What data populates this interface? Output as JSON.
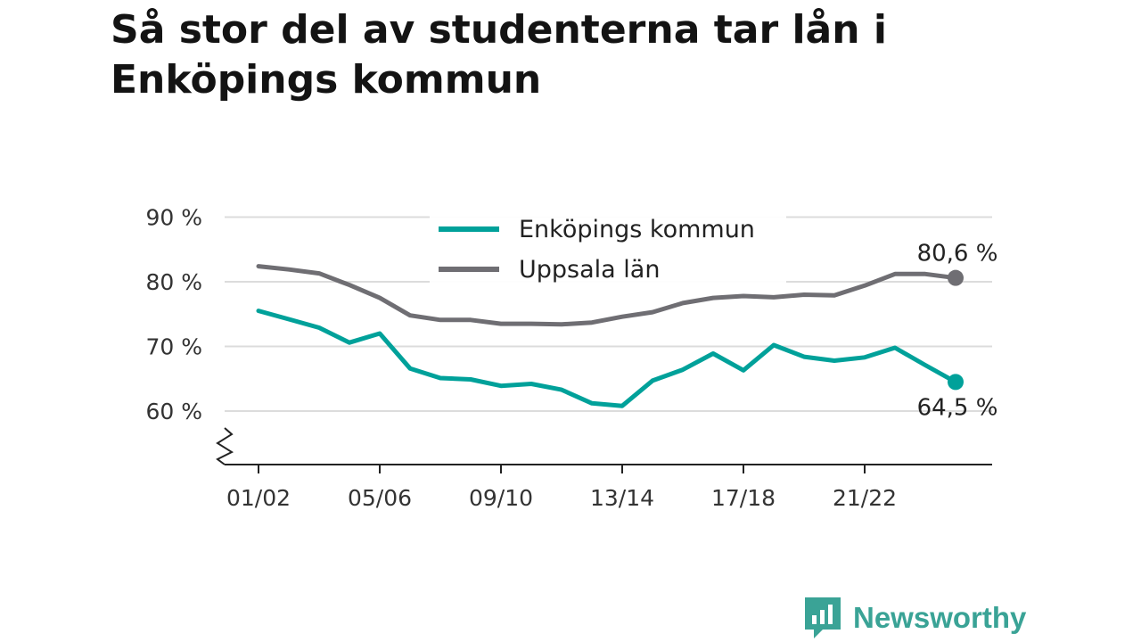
{
  "title": "Så stor del av studenterna tar lån i Enköpings kommun",
  "brand": {
    "name": "Newsworthy",
    "color": "#3aa396"
  },
  "chart_data": {
    "type": "line",
    "title": "Så stor del av studenterna tar lån i Enköpings kommun",
    "xlabel": "",
    "ylabel": "",
    "x": [
      "01/02",
      "02/03",
      "03/04",
      "04/05",
      "05/06",
      "06/07",
      "07/08",
      "08/09",
      "09/10",
      "10/11",
      "11/12",
      "12/13",
      "13/14",
      "14/15",
      "15/16",
      "16/17",
      "17/18",
      "18/19",
      "19/20",
      "20/21",
      "21/22",
      "22/23",
      "23/24",
      "24/25"
    ],
    "x_tick_labels": [
      "01/02",
      "05/06",
      "09/10",
      "13/14",
      "17/18",
      "21/22"
    ],
    "y_ticks": [
      60,
      70,
      80,
      90
    ],
    "y_tick_labels": [
      "60 %",
      "70 %",
      "80 %",
      "90 %"
    ],
    "ylim": [
      52,
      92
    ],
    "y_axis_break": true,
    "grid": true,
    "legend_position": "top-center",
    "series": [
      {
        "name": "Enköpings kommun",
        "color": "#00a19a",
        "values": [
          75.5,
          74.2,
          72.9,
          70.6,
          72.0,
          66.6,
          65.1,
          64.9,
          63.9,
          64.2,
          63.3,
          61.2,
          60.8,
          64.7,
          66.4,
          68.9,
          66.3,
          70.2,
          68.4,
          67.8,
          68.3,
          69.8,
          67.1,
          64.5
        ],
        "end_label": "64,5 %"
      },
      {
        "name": "Uppsala län",
        "color": "#6f6e73",
        "values": [
          82.4,
          81.9,
          81.3,
          79.5,
          77.5,
          74.8,
          74.1,
          74.1,
          73.5,
          73.5,
          73.4,
          73.7,
          74.6,
          75.3,
          76.7,
          77.5,
          77.8,
          77.6,
          78.0,
          77.9,
          79.4,
          81.2,
          81.2,
          80.6
        ],
        "end_label": "80,6 %"
      }
    ]
  }
}
